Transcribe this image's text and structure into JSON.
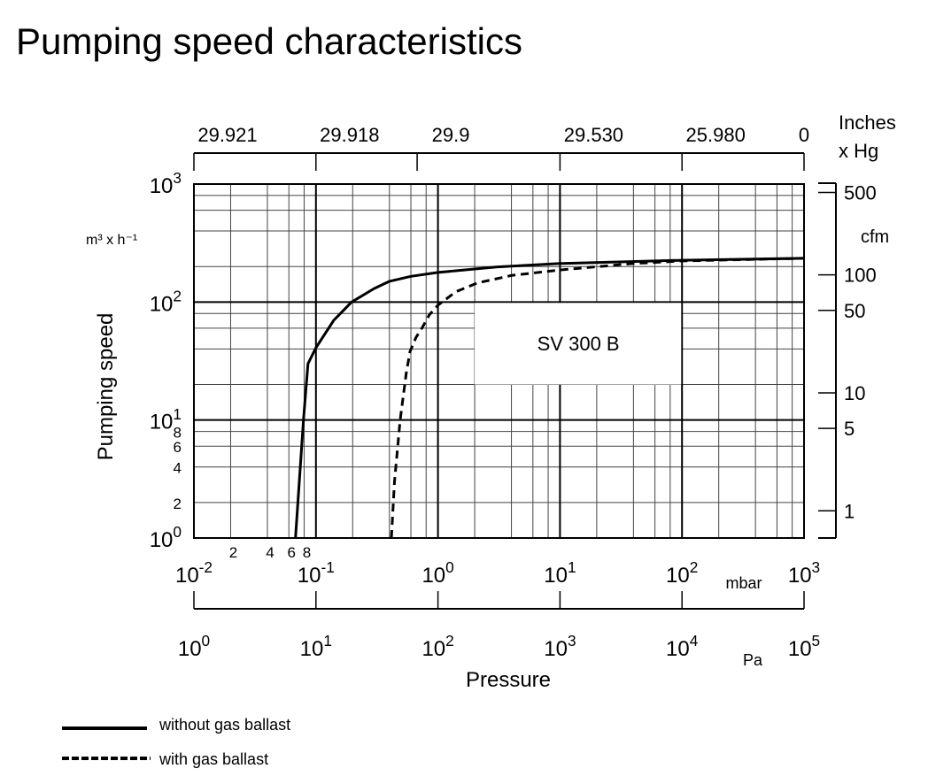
{
  "chart_data": {
    "type": "line",
    "title": "Pumping speed characteristics",
    "ylabel": "Pumping speed",
    "yunit": "m³ x h⁻¹",
    "xlabel": "Pressure",
    "xunit_mbar": "mbar",
    "xunit_pa": "Pa",
    "xscale": "log",
    "yscale": "log",
    "xlim": [
      0.01,
      1000
    ],
    "ylim": [
      1,
      1000
    ],
    "grid": true,
    "x_ticks_mbar": [
      {
        "value": 0.01,
        "base": "10",
        "exp": "-2"
      },
      {
        "value": 0.1,
        "base": "10",
        "exp": "-1"
      },
      {
        "value": 1,
        "base": "10",
        "exp": "0"
      },
      {
        "value": 10,
        "base": "10",
        "exp": "1"
      },
      {
        "value": 100,
        "base": "10",
        "exp": "2"
      },
      {
        "value": 1000,
        "base": "10",
        "exp": "3"
      }
    ],
    "x_minor_labels": [
      {
        "value": 0.02,
        "label": "2"
      },
      {
        "value": 0.04,
        "label": "4"
      },
      {
        "value": 0.06,
        "label": "6"
      },
      {
        "value": 0.08,
        "label": "8"
      }
    ],
    "x_ticks_pa": [
      {
        "value": 0.01,
        "base": "10",
        "exp": "0"
      },
      {
        "value": 0.1,
        "base": "10",
        "exp": "1"
      },
      {
        "value": 1,
        "base": "10",
        "exp": "2"
      },
      {
        "value": 10,
        "base": "10",
        "exp": "3"
      },
      {
        "value": 100,
        "base": "10",
        "exp": "4"
      },
      {
        "value": 1000,
        "base": "10",
        "exp": "5"
      }
    ],
    "y_ticks": [
      {
        "value": 1,
        "base": "10",
        "exp": "0"
      },
      {
        "value": 10,
        "base": "10",
        "exp": "1"
      },
      {
        "value": 100,
        "base": "10",
        "exp": "2"
      },
      {
        "value": 1000,
        "base": "10",
        "exp": "3"
      }
    ],
    "y_minor_labels": [
      {
        "value": 2,
        "label": "2"
      },
      {
        "value": 4,
        "label": "4"
      },
      {
        "value": 6,
        "label": "6"
      },
      {
        "value": 8,
        "label": "8"
      }
    ],
    "top_axis": {
      "unit_line1": "Inches",
      "unit_line2": "x Hg",
      "ticks": [
        {
          "at_mbar": 0.01,
          "label": "29.921"
        },
        {
          "at_mbar": 0.1,
          "label": "29.918"
        },
        {
          "at_mbar": 0.675,
          "label": "29.9"
        },
        {
          "at_mbar": 10,
          "label": "29.530"
        },
        {
          "at_mbar": 100,
          "label": "25.980"
        },
        {
          "at_mbar": 1000,
          "label": "0"
        }
      ]
    },
    "right_axis": {
      "unit": "cfm",
      "m3h_per_cfm": 1.699,
      "ticks": [
        {
          "value": 500,
          "label": "500"
        },
        {
          "value": 100,
          "label": "100"
        },
        {
          "value": 50,
          "label": "50"
        },
        {
          "value": 10,
          "label": "10"
        },
        {
          "value": 5,
          "label": "5"
        },
        {
          "value": 1,
          "label": "1"
        }
      ]
    },
    "annotation": "SV 300 B",
    "series": [
      {
        "name": "without gas ballast",
        "style": "solid",
        "x": [
          0.068,
          0.079,
          0.086,
          0.1,
          0.14,
          0.196,
          0.3,
          0.4,
          0.6,
          1,
          3,
          10,
          100,
          1000
        ],
        "y": [
          1,
          10,
          30,
          41,
          70,
          100,
          130,
          150,
          165,
          178,
          198,
          212,
          226,
          235
        ]
      },
      {
        "name": "with gas ballast",
        "style": "dashed",
        "x": [
          0.415,
          0.44,
          0.49,
          0.55,
          0.59,
          0.66,
          0.745,
          0.85,
          1,
          1.4,
          2.1,
          4,
          10,
          40,
          100,
          1000
        ],
        "y": [
          1,
          3,
          10,
          25,
          38,
          50,
          61,
          78,
          94,
          122,
          145,
          168,
          187,
          212,
          223,
          235
        ]
      }
    ],
    "legend": {
      "placement": "bottom-left"
    }
  }
}
